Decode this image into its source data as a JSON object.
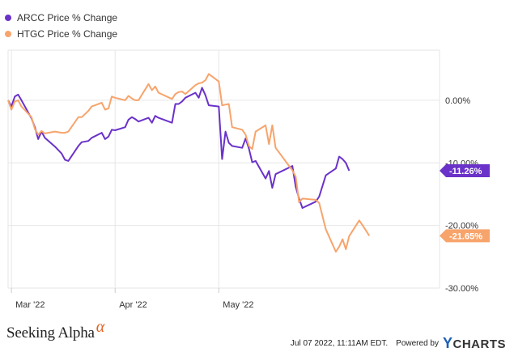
{
  "chart_data": {
    "type": "line",
    "xlabel": "",
    "ylabel": "",
    "ylim": [
      -30,
      8
    ],
    "y_ticks": [
      {
        "value": 0,
        "label": "0.00%"
      },
      {
        "value": -10,
        "label": "-10.00%"
      },
      {
        "value": -20,
        "label": "-20.00%"
      },
      {
        "value": -30,
        "label": "-30.00%"
      }
    ],
    "x_ticks": [
      {
        "date": "2022-03-01",
        "label": "Mar '22"
      },
      {
        "date": "2022-04-01",
        "label": "Apr '22"
      },
      {
        "date": "2022-05-02",
        "label": "May '22"
      }
    ],
    "x_range": [
      "2022-02-28",
      "2022-07-07"
    ],
    "grid": true,
    "legend_position": "top-left",
    "series": [
      {
        "name": "ARCC Price % Change",
        "color": "#6a32c9",
        "end_label": "-11.26%",
        "points": [
          [
            "2022-02-28",
            0.0
          ],
          [
            "2022-03-01",
            -1.0
          ],
          [
            "2022-03-02",
            0.6
          ],
          [
            "2022-03-03",
            0.9
          ],
          [
            "2022-03-04",
            0.0
          ],
          [
            "2022-03-07",
            -2.9
          ],
          [
            "2022-03-08",
            -4.3
          ],
          [
            "2022-03-09",
            -6.2
          ],
          [
            "2022-03-10",
            -5.0
          ],
          [
            "2022-03-11",
            -6.0
          ],
          [
            "2022-03-14",
            -7.4
          ],
          [
            "2022-03-16",
            -8.5
          ],
          [
            "2022-03-17",
            -9.5
          ],
          [
            "2022-03-18",
            -9.7
          ],
          [
            "2022-03-21",
            -7.3
          ],
          [
            "2022-03-22",
            -6.7
          ],
          [
            "2022-03-24",
            -6.5
          ],
          [
            "2022-03-25",
            -6.0
          ],
          [
            "2022-03-28",
            -5.2
          ],
          [
            "2022-03-29",
            -6.2
          ],
          [
            "2022-03-30",
            -5.8
          ],
          [
            "2022-03-31",
            -4.7
          ],
          [
            "2022-04-01",
            -4.8
          ],
          [
            "2022-04-04",
            -4.3
          ],
          [
            "2022-04-05",
            -3.1
          ],
          [
            "2022-04-06",
            -2.7
          ],
          [
            "2022-04-07",
            -3.0
          ],
          [
            "2022-04-08",
            -3.4
          ],
          [
            "2022-04-11",
            -2.8
          ],
          [
            "2022-04-12",
            -3.6
          ],
          [
            "2022-04-13",
            -2.5
          ],
          [
            "2022-04-14",
            -2.8
          ],
          [
            "2022-04-18",
            -3.6
          ],
          [
            "2022-04-19",
            -0.6
          ],
          [
            "2022-04-20",
            -0.6
          ],
          [
            "2022-04-21",
            -0.2
          ],
          [
            "2022-04-22",
            0.4
          ],
          [
            "2022-04-25",
            1.2
          ],
          [
            "2022-04-26",
            0.4
          ],
          [
            "2022-04-27",
            2.0
          ],
          [
            "2022-04-28",
            0.8
          ],
          [
            "2022-04-29",
            -0.8
          ],
          [
            "2022-05-02",
            -1.0
          ],
          [
            "2022-05-03",
            -9.4
          ],
          [
            "2022-05-04",
            -5.0
          ],
          [
            "2022-05-05",
            -6.8
          ],
          [
            "2022-05-06",
            -7.3
          ],
          [
            "2022-05-09",
            -7.6
          ],
          [
            "2022-05-10",
            -6.1
          ],
          [
            "2022-05-11",
            -7.7
          ],
          [
            "2022-05-12",
            -9.9
          ],
          [
            "2022-05-13",
            -9.7
          ],
          [
            "2022-05-16",
            -12.5
          ],
          [
            "2022-05-17",
            -11.3
          ],
          [
            "2022-05-18",
            -14.0
          ],
          [
            "2022-05-19",
            -11.8
          ],
          [
            "2022-05-24",
            -10.5
          ],
          [
            "2022-05-25",
            -13.8
          ],
          [
            "2022-05-26",
            -15.7
          ],
          [
            "2022-05-27",
            -17.2
          ],
          [
            "2022-05-31",
            -16.2
          ],
          [
            "2022-06-01",
            -15.4
          ],
          [
            "2022-06-03",
            -12.0
          ],
          [
            "2022-06-06",
            -10.9
          ],
          [
            "2022-06-07",
            -9.0
          ],
          [
            "2022-06-08",
            -9.4
          ],
          [
            "2022-06-09",
            -10.0
          ],
          [
            "2022-06-10",
            -11.26
          ]
        ]
      },
      {
        "name": "HTGC Price % Change",
        "color": "#f7a46c",
        "end_label": "-21.65%",
        "points": [
          [
            "2022-02-28",
            0.0
          ],
          [
            "2022-03-01",
            -1.5
          ],
          [
            "2022-03-02",
            -0.2
          ],
          [
            "2022-03-03",
            0.0
          ],
          [
            "2022-03-04",
            -1.0
          ],
          [
            "2022-03-07",
            -2.7
          ],
          [
            "2022-03-08",
            -4.6
          ],
          [
            "2022-03-09",
            -5.5
          ],
          [
            "2022-03-10",
            -4.9
          ],
          [
            "2022-03-11",
            -5.3
          ],
          [
            "2022-03-14",
            -5.0
          ],
          [
            "2022-03-16",
            -5.2
          ],
          [
            "2022-03-17",
            -5.2
          ],
          [
            "2022-03-18",
            -5.0
          ],
          [
            "2022-03-21",
            -2.7
          ],
          [
            "2022-03-22",
            -2.7
          ],
          [
            "2022-03-24",
            -1.7
          ],
          [
            "2022-03-25",
            -1.0
          ],
          [
            "2022-03-28",
            -0.4
          ],
          [
            "2022-03-29",
            -1.5
          ],
          [
            "2022-03-30",
            -1.3
          ],
          [
            "2022-03-31",
            0.6
          ],
          [
            "2022-04-01",
            0.4
          ],
          [
            "2022-04-04",
            0.0
          ],
          [
            "2022-04-05",
            0.7
          ],
          [
            "2022-04-06",
            0.3
          ],
          [
            "2022-04-07",
            0.0
          ],
          [
            "2022-04-08",
            0.0
          ],
          [
            "2022-04-11",
            2.6
          ],
          [
            "2022-04-12",
            1.6
          ],
          [
            "2022-04-13",
            2.2
          ],
          [
            "2022-04-14",
            1.2
          ],
          [
            "2022-04-18",
            0.2
          ],
          [
            "2022-04-19",
            1.0
          ],
          [
            "2022-04-20",
            1.3
          ],
          [
            "2022-04-21",
            1.4
          ],
          [
            "2022-04-22",
            1.0
          ],
          [
            "2022-04-25",
            2.4
          ],
          [
            "2022-04-26",
            2.7
          ],
          [
            "2022-04-27",
            2.8
          ],
          [
            "2022-04-28",
            3.2
          ],
          [
            "2022-04-29",
            4.2
          ],
          [
            "2022-05-02",
            3.0
          ],
          [
            "2022-05-03",
            -0.8
          ],
          [
            "2022-05-04",
            -0.7
          ],
          [
            "2022-05-05",
            -0.6
          ],
          [
            "2022-05-06",
            -4.3
          ],
          [
            "2022-05-09",
            -4.7
          ],
          [
            "2022-05-10",
            -5.5
          ],
          [
            "2022-05-11",
            -7.3
          ],
          [
            "2022-05-12",
            -7.8
          ],
          [
            "2022-05-13",
            -5.0
          ],
          [
            "2022-05-16",
            -4.0
          ],
          [
            "2022-05-17",
            -7.0
          ],
          [
            "2022-05-18",
            -4.0
          ],
          [
            "2022-05-19",
            -7.6
          ],
          [
            "2022-05-24",
            -11.2
          ],
          [
            "2022-05-25",
            -12.2
          ],
          [
            "2022-05-26",
            -16.3
          ],
          [
            "2022-05-27",
            -15.7
          ],
          [
            "2022-05-31",
            -15.9
          ],
          [
            "2022-06-01",
            -16.4
          ],
          [
            "2022-06-03",
            -20.6
          ],
          [
            "2022-06-06",
            -24.2
          ],
          [
            "2022-06-07",
            -23.4
          ],
          [
            "2022-06-08",
            -22.2
          ],
          [
            "2022-06-09",
            -23.8
          ],
          [
            "2022-06-10",
            -21.7
          ],
          [
            "2022-06-13",
            -19.2
          ],
          [
            "2022-06-14",
            -20.0
          ],
          [
            "2022-06-15",
            -20.8
          ],
          [
            "2022-06-16",
            -21.65
          ]
        ]
      }
    ]
  },
  "footer": {
    "brand_text": "Seeking Alpha",
    "brand_symbol": "α",
    "timestamp": "Jul 07 2022, 11:11AM EDT.",
    "powered_by": "Powered by",
    "ycharts_y": "Y",
    "ycharts_rest": "CHARTS"
  }
}
